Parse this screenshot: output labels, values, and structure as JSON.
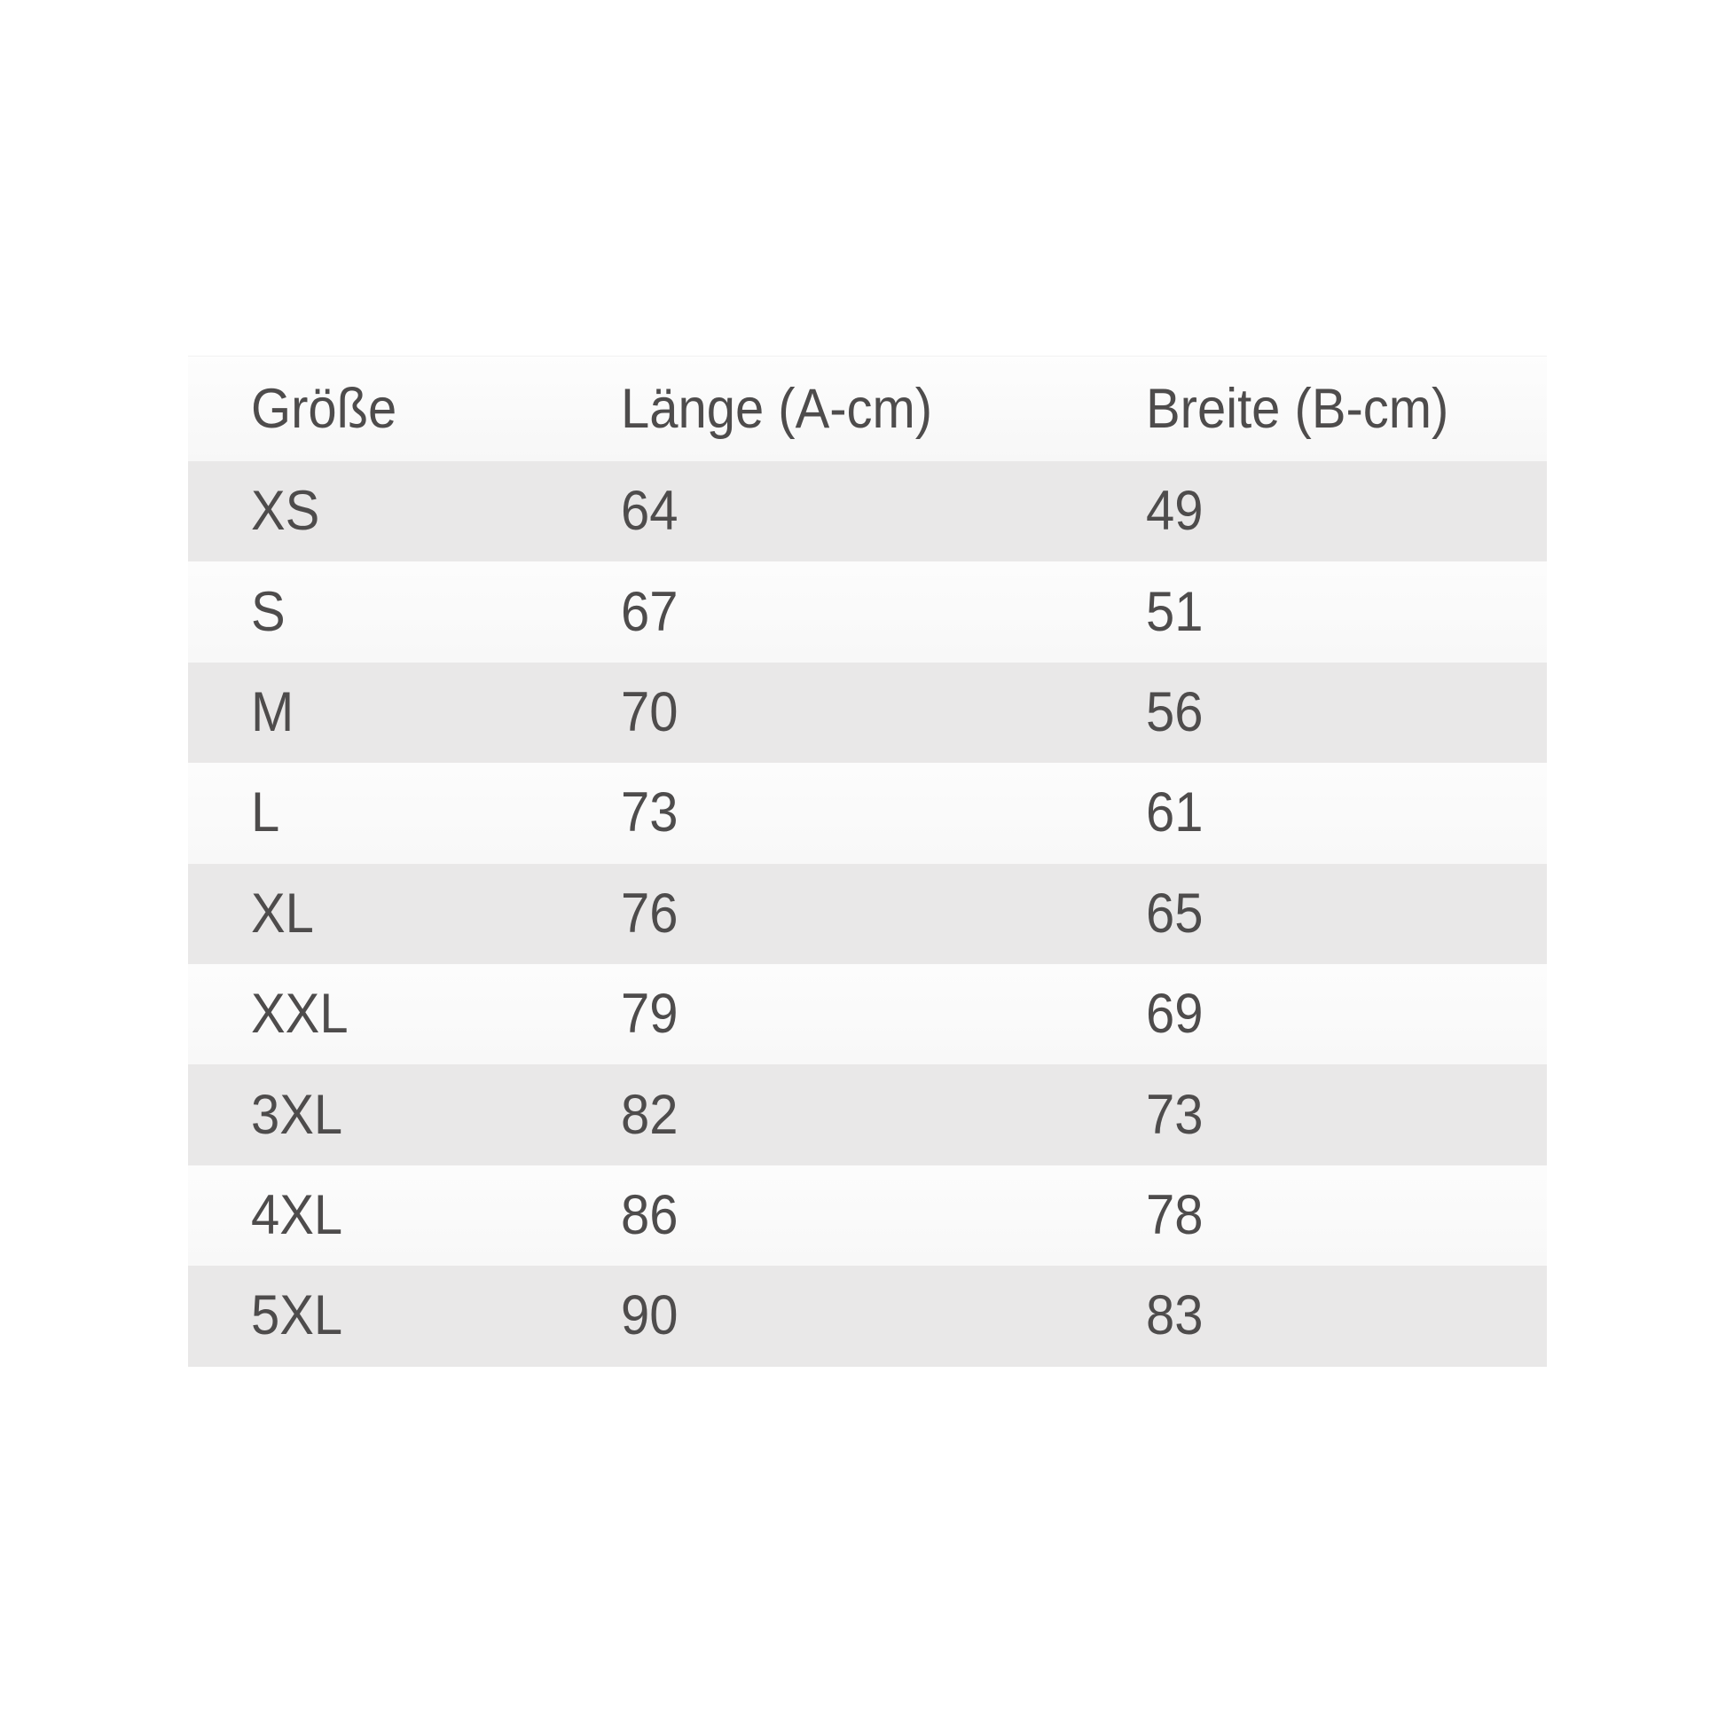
{
  "chart_data": {
    "type": "table",
    "columns": [
      "Größe",
      "Länge (A-cm)",
      "Breite (B-cm)"
    ],
    "rows": [
      {
        "size": "XS",
        "length_cm": "64",
        "width_cm": "49"
      },
      {
        "size": "S",
        "length_cm": "67",
        "width_cm": "51"
      },
      {
        "size": "M",
        "length_cm": "70",
        "width_cm": "56"
      },
      {
        "size": "L",
        "length_cm": "73",
        "width_cm": "61"
      },
      {
        "size": "XL",
        "length_cm": "76",
        "width_cm": "65"
      },
      {
        "size": "XXL",
        "length_cm": "79",
        "width_cm": "69"
      },
      {
        "size": "3XL",
        "length_cm": "82",
        "width_cm": "73"
      },
      {
        "size": "4XL",
        "length_cm": "86",
        "width_cm": "78"
      },
      {
        "size": "5XL",
        "length_cm": "90",
        "width_cm": "83"
      }
    ],
    "layout": {
      "legend": "none",
      "grid": "row-stripes"
    }
  },
  "colors": {
    "page_background": "#ffffff",
    "header_row_background": "#fbfbfb",
    "stripe_gray": "#e9e8e8",
    "stripe_light": "#fafafa",
    "text": "#4e4c4c"
  }
}
